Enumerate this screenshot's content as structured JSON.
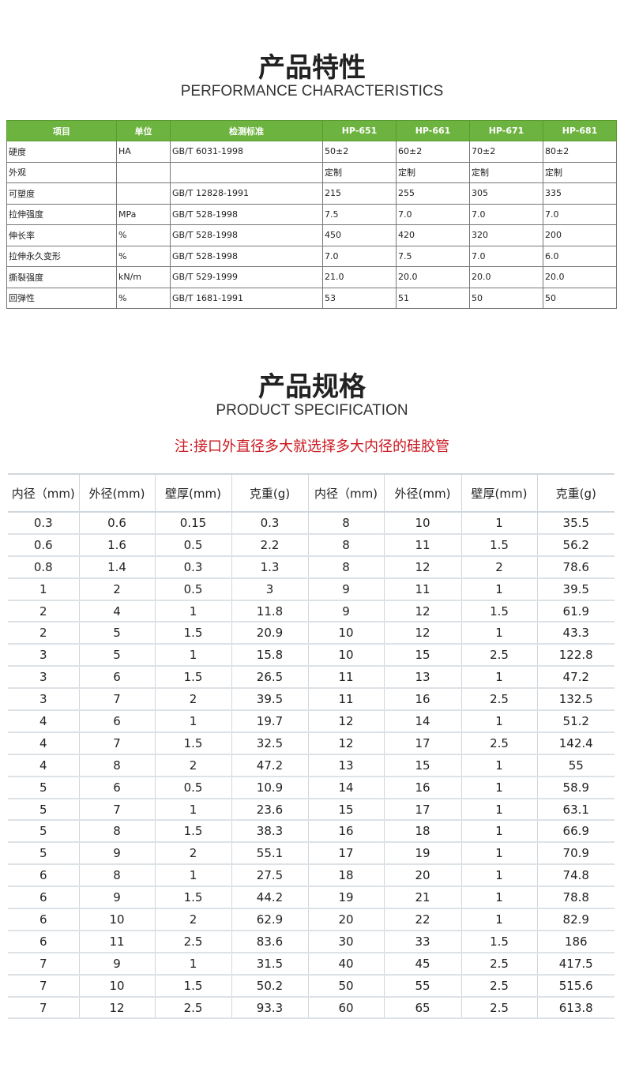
{
  "section1": {
    "title": "产品特性",
    "subtitle": "PERFORMANCE CHARACTERISTICS"
  },
  "table1": {
    "headers": [
      "项目",
      "单位",
      "检测标准",
      "HP-651",
      "HP-661",
      "HP-671",
      "HP-681"
    ],
    "rows": [
      [
        "硬度",
        "HA",
        "GB/T 6031-1998",
        "50±2",
        "60±2",
        "70±2",
        "80±2"
      ],
      [
        "外观",
        "",
        "",
        "定制",
        "定制",
        "定制",
        "定制"
      ],
      [
        "可塑度",
        "",
        "GB/T 12828-1991",
        "215",
        "255",
        "305",
        "335"
      ],
      [
        "拉伸强度",
        "MPa",
        "GB/T 528-1998",
        "7.5",
        "7.0",
        "7.0",
        "7.0"
      ],
      [
        "伸长率",
        "%",
        "GB/T 528-1998",
        "450",
        "420",
        "320",
        "200"
      ],
      [
        "拉伸永久变形",
        "%",
        "GB/T 528-1998",
        "7.0",
        "7.5",
        "7.0",
        "6.0"
      ],
      [
        "撕裂强度",
        "kN/m",
        "GB/T 529-1999",
        "21.0",
        "20.0",
        "20.0",
        "20.0"
      ],
      [
        "回弹性",
        "%",
        "GB/T 1681-1991",
        "53",
        "51",
        "50",
        "50"
      ]
    ]
  },
  "section2": {
    "title": "产品规格",
    "subtitle": "PRODUCT SPECIFICATION",
    "note": "注:接口外直径多大就选择多大内径的硅胶管"
  },
  "table2": {
    "headers": [
      "内径（mm)",
      "外径(mm)",
      "壁厚(mm)",
      "克重(g)",
      "内径（mm)",
      "外径(mm)",
      "壁厚(mm)",
      "克重(g)"
    ],
    "rows": [
      [
        "0.3",
        "0.6",
        "0.15",
        "0.3",
        "8",
        "10",
        "1",
        "35.5"
      ],
      [
        "0.6",
        "1.6",
        "0.5",
        "2.2",
        "8",
        "11",
        "1.5",
        "56.2"
      ],
      [
        "0.8",
        "1.4",
        "0.3",
        "1.3",
        "8",
        "12",
        "2",
        "78.6"
      ],
      [
        "1",
        "2",
        "0.5",
        "3",
        "9",
        "11",
        "1",
        "39.5"
      ],
      [
        "2",
        "4",
        "1",
        "11.8",
        "9",
        "12",
        "1.5",
        "61.9"
      ],
      [
        "2",
        "5",
        "1.5",
        "20.9",
        "10",
        "12",
        "1",
        "43.3"
      ],
      [
        "3",
        "5",
        "1",
        "15.8",
        "10",
        "15",
        "2.5",
        "122.8"
      ],
      [
        "3",
        "6",
        "1.5",
        "26.5",
        "11",
        "13",
        "1",
        "47.2"
      ],
      [
        "3",
        "7",
        "2",
        "39.5",
        "11",
        "16",
        "2.5",
        "132.5"
      ],
      [
        "4",
        "6",
        "1",
        "19.7",
        "12",
        "14",
        "1",
        "51.2"
      ],
      [
        "4",
        "7",
        "1.5",
        "32.5",
        "12",
        "17",
        "2.5",
        "142.4"
      ],
      [
        "4",
        "8",
        "2",
        "47.2",
        "13",
        "15",
        "1",
        "55"
      ],
      [
        "5",
        "6",
        "0.5",
        "10.9",
        "14",
        "16",
        "1",
        "58.9"
      ],
      [
        "5",
        "7",
        "1",
        "23.6",
        "15",
        "17",
        "1",
        "63.1"
      ],
      [
        "5",
        "8",
        "1.5",
        "38.3",
        "16",
        "18",
        "1",
        "66.9"
      ],
      [
        "5",
        "9",
        "2",
        "55.1",
        "17",
        "19",
        "1",
        "70.9"
      ],
      [
        "6",
        "8",
        "1",
        "27.5",
        "18",
        "20",
        "1",
        "74.8"
      ],
      [
        "6",
        "9",
        "1.5",
        "44.2",
        "19",
        "21",
        "1",
        "78.8"
      ],
      [
        "6",
        "10",
        "2",
        "62.9",
        "20",
        "22",
        "1",
        "82.9"
      ],
      [
        "6",
        "11",
        "2.5",
        "83.6",
        "30",
        "33",
        "1.5",
        "186"
      ],
      [
        "7",
        "9",
        "1",
        "31.5",
        "40",
        "45",
        "2.5",
        "417.5"
      ],
      [
        "7",
        "10",
        "1.5",
        "50.2",
        "50",
        "55",
        "2.5",
        "515.6"
      ],
      [
        "7",
        "12",
        "2.5",
        "93.3",
        "60",
        "65",
        "2.5",
        "613.8"
      ]
    ]
  },
  "colors": {
    "header_green": "#6db33f",
    "note_red": "#c8161d"
  }
}
